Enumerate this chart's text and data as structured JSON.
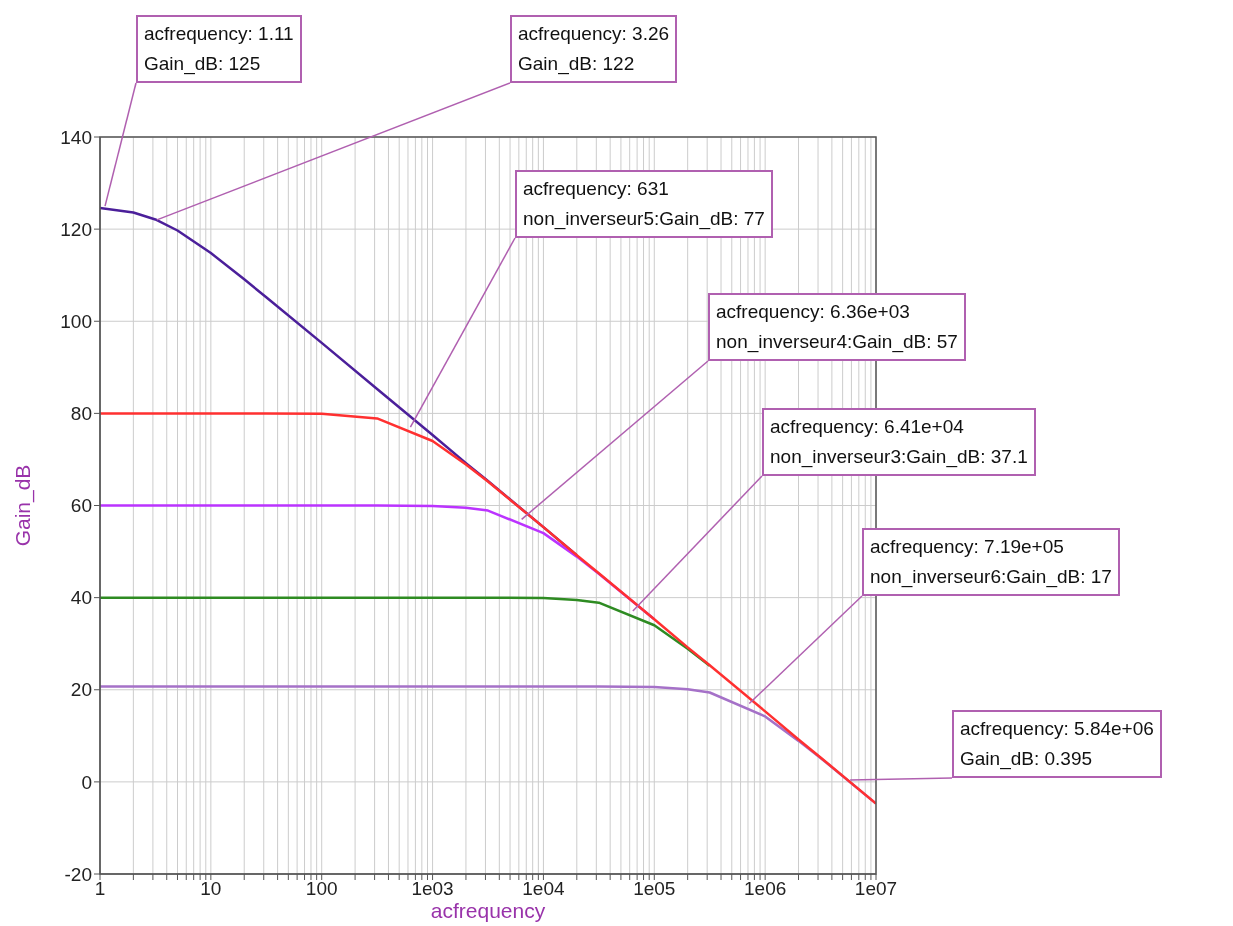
{
  "chart_data": {
    "type": "line",
    "xlabel": "acfrequency",
    "ylabel": "Gain_dB",
    "log": "x",
    "grid": true,
    "legend": false,
    "marker": "none",
    "line_style": "solid",
    "x": [
      1,
      2,
      3.16,
      5,
      10,
      20,
      31.6,
      100,
      316,
      1000,
      2000,
      3160,
      10000,
      20000,
      31600,
      100000,
      200000,
      316000,
      1000000,
      2000000,
      3160000,
      10000000
    ],
    "series": [
      {
        "color": "#4b1f9a",
        "values": [
          124.6,
          123.6,
          122.1,
          119.7,
          114.8,
          109.1,
          105.2,
          95.3,
          85.3,
          75.3,
          69.2,
          65.3,
          55.3,
          49.2,
          null,
          null,
          null,
          null,
          null,
          null,
          null,
          null
        ]
      },
      {
        "color": "#a571c8",
        "values": [
          20.7,
          20.7,
          20.7,
          20.7,
          20.7,
          20.7,
          20.7,
          20.7,
          20.7,
          20.7,
          20.7,
          20.7,
          20.7,
          20.7,
          20.7,
          20.6,
          20.1,
          19.4,
          14.2,
          8.9,
          5.2,
          -4.7
        ]
      },
      {
        "color": "#2e8b22",
        "values": [
          40,
          40,
          40,
          40,
          40,
          40,
          40,
          40,
          40,
          40,
          40,
          40,
          39.9,
          39.5,
          38.9,
          34,
          28.9,
          25.2,
          null,
          null,
          null,
          null
        ]
      },
      {
        "color": "#bb33ff",
        "values": [
          60,
          60,
          60,
          60,
          60,
          60,
          60,
          60,
          60,
          59.9,
          59.5,
          58.9,
          54,
          48.9,
          45.2,
          35.3,
          null,
          null,
          null,
          null,
          null,
          null
        ]
      },
      {
        "color": "#ff3030",
        "values": [
          80,
          80,
          80,
          80,
          80,
          80,
          80,
          79.9,
          78.9,
          74,
          68.9,
          65.2,
          55.3,
          49.2,
          45.3,
          35.3,
          29.2,
          25.3,
          15.3,
          9.2,
          5.3,
          -4.7
        ]
      }
    ],
    "xlim": [
      1,
      10000000
    ],
    "xticks": [
      1,
      {
        "value": 2,
        "label": null
      },
      {
        "value": 3,
        "label": null
      },
      {
        "value": 4,
        "label": null
      },
      {
        "value": 5,
        "label": null
      },
      {
        "value": 6,
        "label": null
      },
      {
        "value": 7,
        "label": null
      },
      {
        "value": 8,
        "label": null
      },
      {
        "value": 9,
        "label": null
      },
      10,
      {
        "value": 20,
        "label": null
      },
      {
        "value": 30,
        "label": null
      },
      {
        "value": 40,
        "label": null
      },
      {
        "value": 50,
        "label": null
      },
      {
        "value": 60,
        "label": null
      },
      {
        "value": 70,
        "label": null
      },
      {
        "value": 80,
        "label": null
      },
      {
        "value": 90,
        "label": null
      },
      100,
      {
        "value": 200,
        "label": null
      },
      {
        "value": 300,
        "label": null
      },
      {
        "value": 400,
        "label": null
      },
      {
        "value": 500,
        "label": null
      },
      {
        "value": 600,
        "label": null
      },
      {
        "value": 700,
        "label": null
      },
      {
        "value": 800,
        "label": null
      },
      {
        "value": 900,
        "label": null
      },
      {
        "value": 1000,
        "label": "1e03"
      },
      {
        "value": 2000,
        "label": null
      },
      {
        "value": 3000,
        "label": null
      },
      {
        "value": 4000,
        "label": null
      },
      {
        "value": 5000,
        "label": null
      },
      {
        "value": 6000,
        "label": null
      },
      {
        "value": 7000,
        "label": null
      },
      {
        "value": 8000,
        "label": null
      },
      {
        "value": 9000,
        "label": null
      },
      {
        "value": 10000,
        "label": "1e04"
      },
      {
        "value": 20000,
        "label": null
      },
      {
        "value": 30000,
        "label": null
      },
      {
        "value": 40000,
        "label": null
      },
      {
        "value": 50000,
        "label": null
      },
      {
        "value": 60000,
        "label": null
      },
      {
        "value": 70000,
        "label": null
      },
      {
        "value": 80000,
        "label": null
      },
      {
        "value": 90000,
        "label": null
      },
      {
        "value": 100000,
        "label": "1e05"
      },
      {
        "value": 200000,
        "label": null
      },
      {
        "value": 300000,
        "label": null
      },
      {
        "value": 400000,
        "label": null
      },
      {
        "value": 500000,
        "label": null
      },
      {
        "value": 600000,
        "label": null
      },
      {
        "value": 700000,
        "label": null
      },
      {
        "value": 800000,
        "label": null
      },
      {
        "value": 900000,
        "label": null
      },
      {
        "value": 1000000,
        "label": "1e06"
      },
      {
        "value": 2000000,
        "label": null
      },
      {
        "value": 3000000,
        "label": null
      },
      {
        "value": 4000000,
        "label": null
      },
      {
        "value": 5000000,
        "label": null
      },
      {
        "value": 6000000,
        "label": null
      },
      {
        "value": 7000000,
        "label": null
      },
      {
        "value": 8000000,
        "label": null
      },
      {
        "value": 9000000,
        "label": null
      },
      {
        "value": 10000000,
        "label": "1e07"
      }
    ],
    "ylim": [
      -20,
      140
    ],
    "yticks": [
      -20,
      0,
      20,
      40,
      60,
      80,
      100,
      120,
      140
    ],
    "annotations": [
      {
        "text": "acfrequency: 1.11\nGain_dB: 125",
        "x": 1.11,
        "y": 125
      },
      {
        "text": "acfrequency: 3.26\nGain_dB: 122",
        "x": 3.26,
        "y": 122
      },
      {
        "text": "acfrequency: 631\nnon_inverseur5:Gain_dB: 77",
        "x": 631,
        "y": 77
      },
      {
        "text": "acfrequency: 6.36e+03\nnon_inverseur4:Gain_dB: 57",
        "x": 6360,
        "y": 57
      },
      {
        "text": "acfrequency: 6.41e+04\nnon_inverseur3:Gain_dB: 37.1",
        "x": 64100,
        "y": 37.1
      },
      {
        "text": "acfrequency: 7.19e+05\nnon_inverseur6:Gain_dB: 17",
        "x": 719000,
        "y": 17
      },
      {
        "text": "acfrequency: 5.84e+06\nGain_dB: 0.395",
        "x": 5840000,
        "y": 0.395
      }
    ]
  }
}
